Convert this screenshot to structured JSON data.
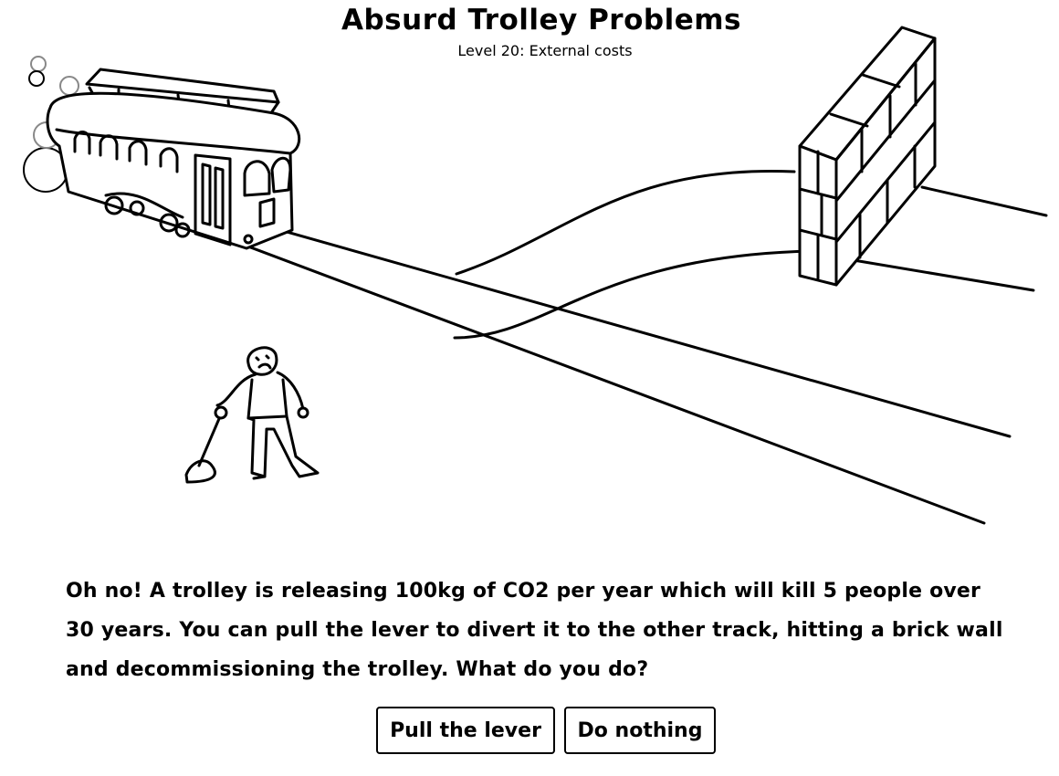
{
  "header": {
    "title": "Absurd Trolley Problems",
    "subtitle": "Level 20: External costs"
  },
  "scene": {
    "items": [
      "trolley",
      "main-track",
      "diverted-track",
      "brick-wall",
      "lever",
      "person"
    ]
  },
  "prompt": {
    "text": "Oh no! A trolley is releasing 100kg of CO2 per year which will kill 5 people over 30 years. You can pull the lever to divert it to the other track, hitting a brick wall and decommissioning the trolley. What do you do?"
  },
  "choices": {
    "pull_label": "Pull the lever",
    "nothing_label": "Do nothing"
  }
}
